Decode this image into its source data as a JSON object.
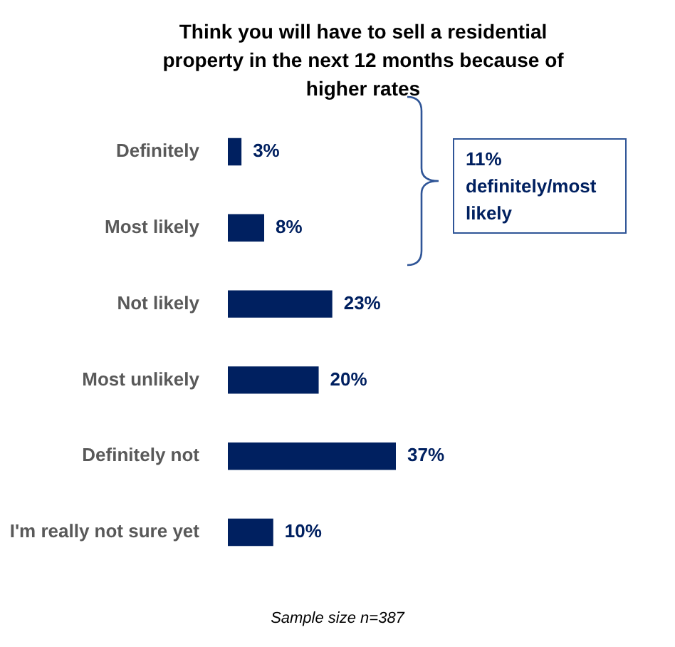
{
  "chart_data": {
    "type": "bar",
    "orientation": "horizontal",
    "title": "Think you will have to sell a residential property in the next 12 months because of higher rates",
    "categories": [
      "Definitely",
      "Most likely",
      "Not likely",
      "Most unlikely",
      "Definitely not",
      "I'm really not sure yet"
    ],
    "values": [
      3,
      8,
      23,
      20,
      37,
      10
    ],
    "value_labels": [
      "3%",
      "8%",
      "23%",
      "20%",
      "37%",
      "10%"
    ],
    "color": "#002060",
    "annotations": [
      "11% definitely/most likely",
      "Sample size n=387"
    ]
  }
}
